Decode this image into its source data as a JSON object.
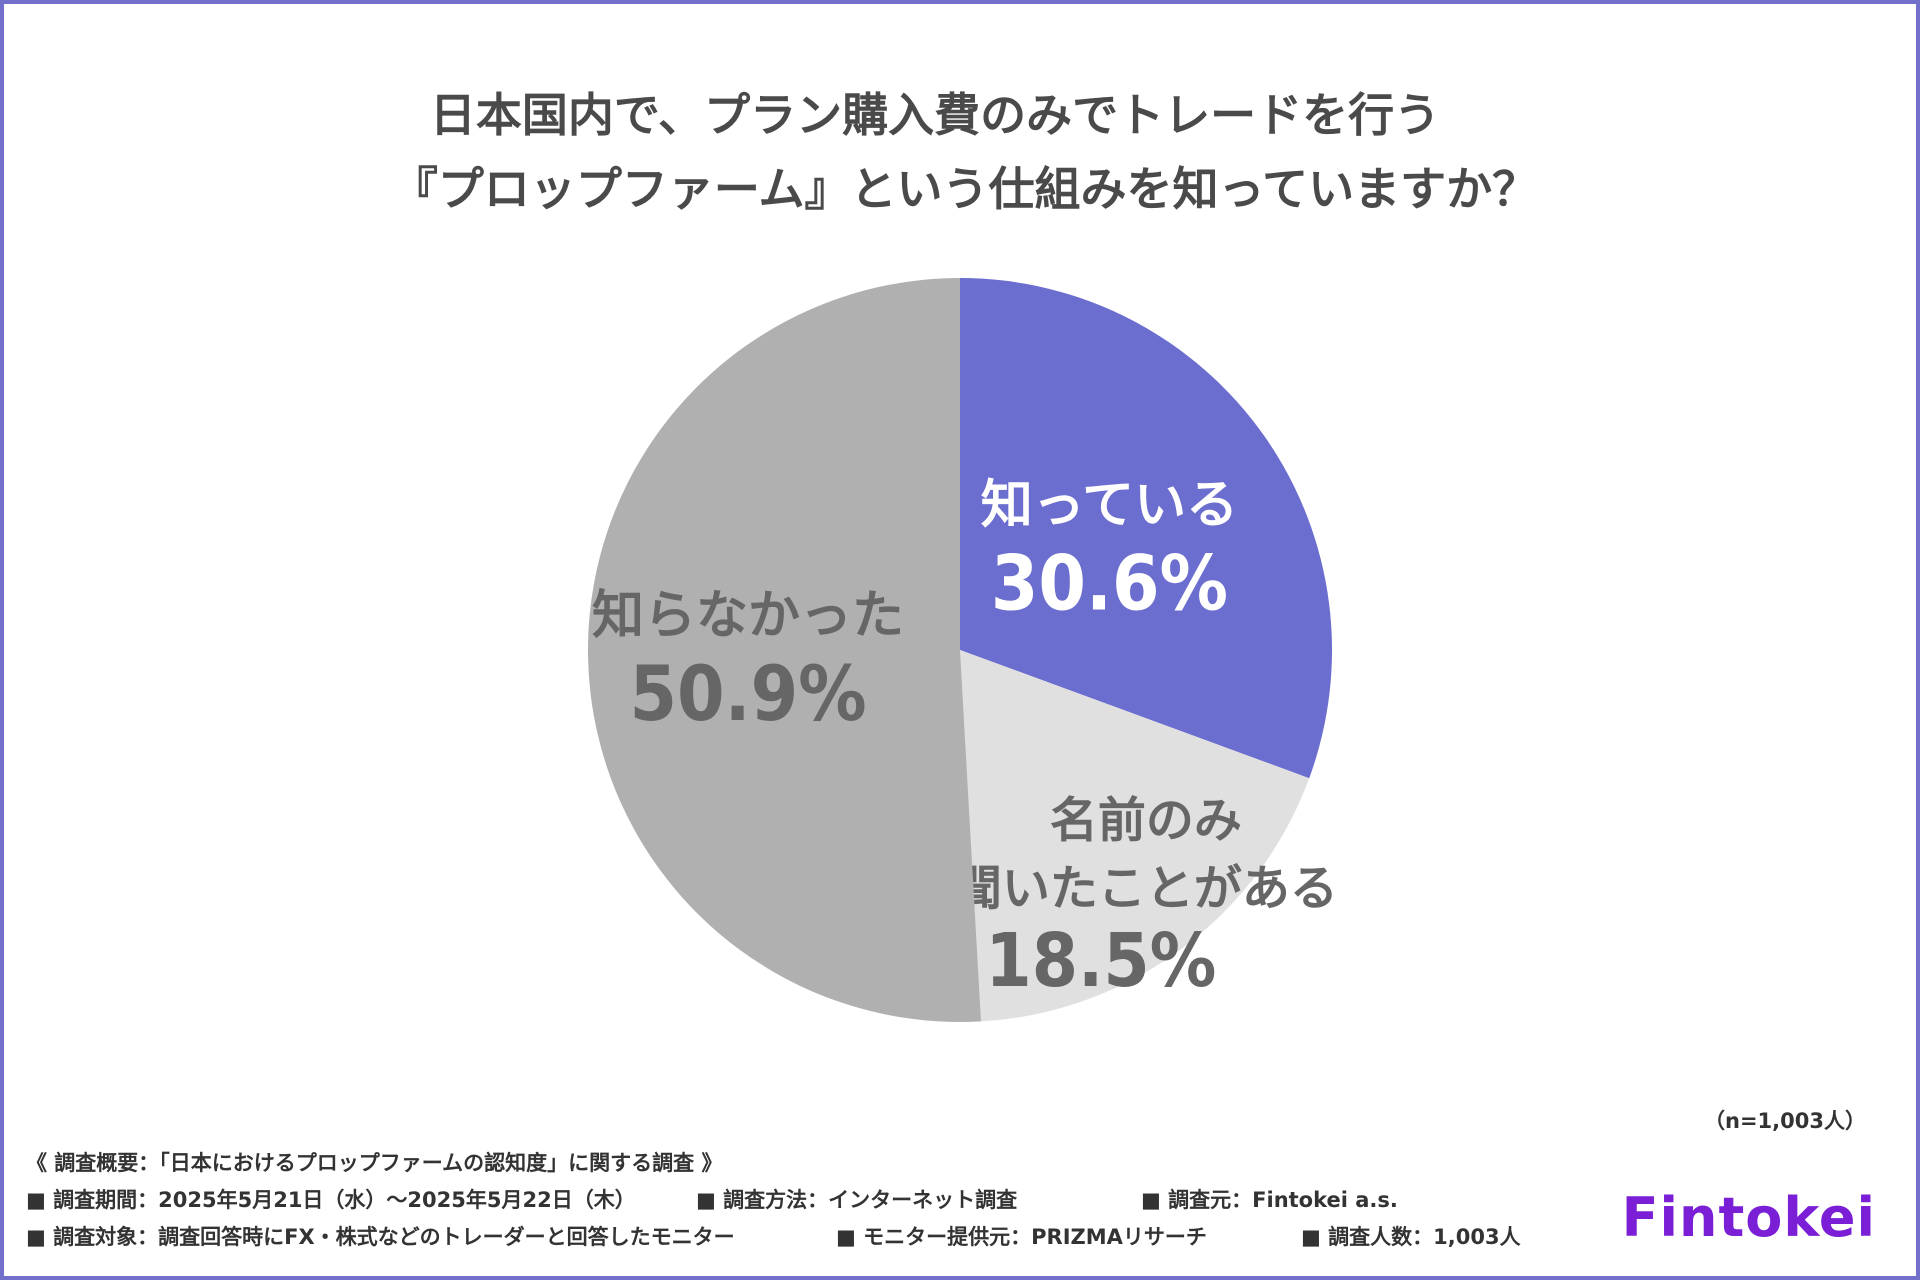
{
  "title": {
    "line1": "日本国内で、プラン購入費のみでトレードを行う",
    "line2": "『プロップファーム』という仕組みを知っていますか？"
  },
  "chart_data": {
    "type": "pie",
    "title": "日本国内で、プラン購入費のみでトレードを行う『プロップファーム』という仕組みを知っていますか？",
    "start": "12 o'clock, clockwise",
    "slices": [
      {
        "label_lines": [
          "知っている"
        ],
        "value": 30.6,
        "value_label": "30.6%",
        "color": "#6b6dcf",
        "text_color": "#ffffff"
      },
      {
        "label_lines": [
          "名前のみ",
          "聞いたことがある"
        ],
        "value": 18.5,
        "value_label": "18.5%",
        "color": "#e0e0e0",
        "text_color": "#666666"
      },
      {
        "label_lines": [
          "知らなかった"
        ],
        "value": 50.9,
        "value_label": "50.9%",
        "color": "#b0b0b0",
        "text_color": "#666666"
      }
    ]
  },
  "sample_size": "（n=1,003人）",
  "footer": {
    "heading": "《 調査概要：「日本におけるプロップファームの認知度」に関する調査 》",
    "period": "■ 調査期間：2025年5月21日（水）〜2025年5月22日（木）",
    "method": "■ 調査方法：インターネット調査",
    "organizer": "■ 調査元：Fintokei a.s.",
    "target": "■ 調査対象：調査回答時にFX・株式などのトレーダーと回答したモニター",
    "provider": "■ モニター提供元：PRIZMAリサーチ",
    "count": "■ 調査人数：1,003人"
  },
  "brand": "Fintokei"
}
